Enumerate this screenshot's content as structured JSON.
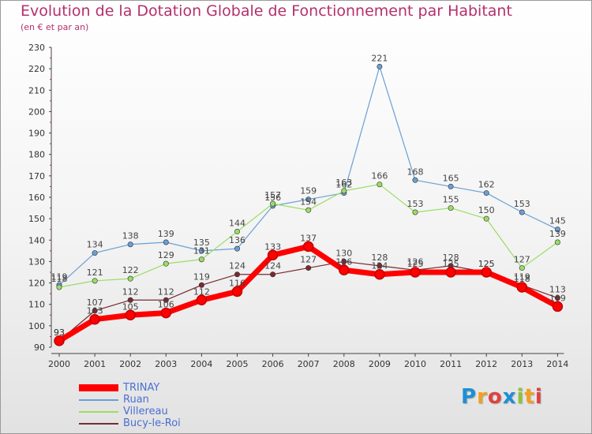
{
  "chart_data": {
    "type": "line",
    "title": "Evolution de la Dotation Globale de Fonctionnement par Habitant",
    "subtitle": "(en € et par an)",
    "xlabel": "",
    "ylabel": "",
    "x": [
      "2000",
      "2001",
      "2002",
      "2003",
      "2004",
      "2005",
      "2006",
      "2007",
      "2008",
      "2009",
      "2010",
      "2011",
      "2012",
      "2013",
      "2014"
    ],
    "ylim": [
      90,
      230
    ],
    "yticks": [
      90,
      100,
      110,
      120,
      130,
      140,
      150,
      160,
      170,
      180,
      190,
      200,
      210,
      220,
      230
    ],
    "grid": false,
    "legend_position": "bottom-left",
    "series": [
      {
        "name": "TRINAY",
        "color": "#ff0000",
        "values": [
          93,
          103,
          105,
          106,
          112,
          116,
          133,
          137,
          126,
          124,
          125,
          125,
          125,
          118,
          109
        ]
      },
      {
        "name": "Ruan",
        "color": "#6b9fd4",
        "values": [
          119,
          134,
          138,
          139,
          135,
          136,
          156,
          159,
          162,
          221,
          168,
          165,
          162,
          153,
          145
        ]
      },
      {
        "name": "Villereau",
        "color": "#99dd66",
        "values": [
          118,
          121,
          122,
          129,
          131,
          144,
          157,
          154,
          163,
          166,
          153,
          155,
          150,
          127,
          139
        ]
      },
      {
        "name": "Bucy-le-Roi",
        "color": "#7a2a32",
        "values": [
          93,
          107,
          112,
          112,
          119,
          124,
          124,
          127,
          130,
          128,
          126,
          128,
          125,
          119,
          113
        ]
      }
    ]
  },
  "logo": {
    "letters": [
      "P",
      "r",
      "o",
      "x",
      "i",
      "t",
      "i"
    ],
    "colors": [
      "#1e8fd6",
      "#f0a020",
      "#e04040",
      "#1e8fd6",
      "#8ac43f",
      "#f0a020",
      "#e04040"
    ]
  }
}
